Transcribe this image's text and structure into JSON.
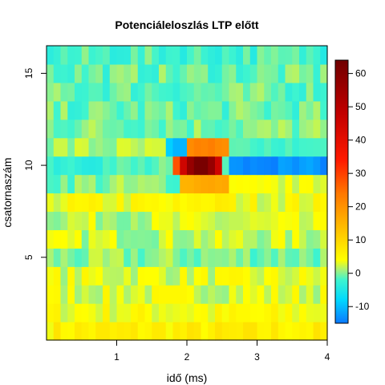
{
  "chart_data": {
    "type": "heatmap",
    "title": "Potenciáleloszlás LTP előtt",
    "xlabel": "idő (ms)",
    "ylabel": "csatornaszám",
    "xlim": [
      0.0,
      4.0
    ],
    "ylim": [
      0.5,
      16.5
    ],
    "x_ticks": [
      "1",
      "2",
      "3",
      "4"
    ],
    "y_ticks": [
      "5",
      "10",
      "15"
    ],
    "x_tick_values": [
      1,
      2,
      3,
      4
    ],
    "y_tick_values": [
      5,
      10,
      15
    ],
    "n_channels": 16,
    "n_time_bins": 40,
    "colorbar": {
      "min": -15,
      "max": 64,
      "ticks": [
        "60",
        "50",
        "40",
        "30",
        "20",
        "10",
        "0",
        "-10"
      ],
      "tick_values": [
        60,
        50,
        40,
        30,
        20,
        10,
        0,
        -10
      ],
      "stops": [
        {
          "v": -15,
          "c": "#0a78ff"
        },
        {
          "v": -8,
          "c": "#00d8ff"
        },
        {
          "v": -2,
          "c": "#3ef4cf"
        },
        {
          "v": 1,
          "c": "#a6f27a"
        },
        {
          "v": 4,
          "c": "#ffff00"
        },
        {
          "v": 14,
          "c": "#ffbb00"
        },
        {
          "v": 24,
          "c": "#ff7700"
        },
        {
          "v": 34,
          "c": "#ff1a00"
        },
        {
          "v": 48,
          "c": "#c20000"
        },
        {
          "v": 64,
          "c": "#700000"
        }
      ]
    },
    "baseline_by_channel": [
      6,
      4,
      3,
      3,
      0,
      2,
      2,
      4,
      0,
      -2,
      1,
      0,
      -1,
      -1,
      -1,
      -2
    ],
    "events": [
      {
        "channel": 10,
        "t_start": 1.85,
        "t_end": 2.55,
        "peak_value": 63,
        "peak_time": 2.2
      },
      {
        "channel": 11,
        "t_start": 1.75,
        "t_end": 2.05,
        "value": -10
      },
      {
        "channel": 11,
        "t_start": 2.05,
        "t_end": 2.6,
        "value": 22
      },
      {
        "channel": 9,
        "t_start": 1.95,
        "t_end": 2.6,
        "value": 16
      },
      {
        "channel": 8,
        "t_start": 2.0,
        "t_end": 2.6,
        "value": 6
      },
      {
        "channel": 10,
        "t_start": 2.6,
        "t_end": 4.0,
        "value": -13
      },
      {
        "channel": 11,
        "t_start": 2.6,
        "t_end": 4.0,
        "value": -2
      },
      {
        "channel": 9,
        "t_start": 2.6,
        "t_end": 4.0,
        "value": 3
      }
    ]
  }
}
